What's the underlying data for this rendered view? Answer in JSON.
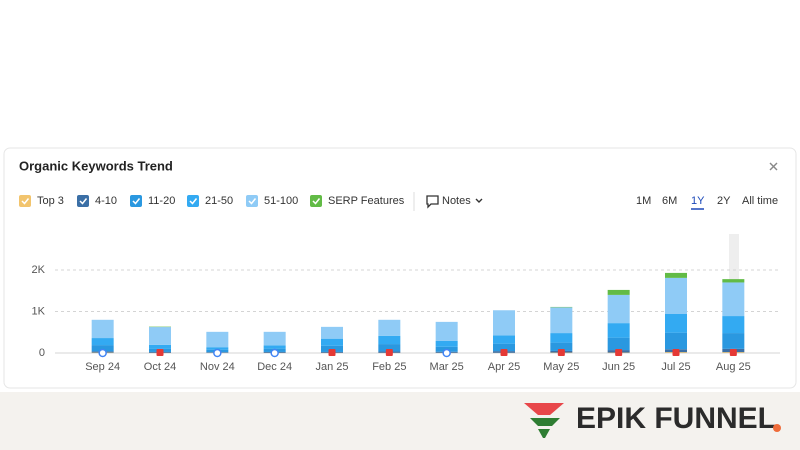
{
  "chart_data": {
    "type": "stacked-bar",
    "title": "Organic Keywords Trend",
    "categories": [
      "Sep 24",
      "Oct 24",
      "Nov 24",
      "Dec 24",
      "Jan 25",
      "Feb 25",
      "Mar 25",
      "Apr 25",
      "May 25",
      "Jun 25",
      "Jul 25",
      "Aug 25"
    ],
    "series": [
      {
        "name": "Top 3",
        "color": "#f2c46d",
        "values": [
          10,
          5,
          5,
          5,
          5,
          5,
          5,
          5,
          10,
          10,
          20,
          20
        ]
      },
      {
        "name": "4-10",
        "color": "#3b6fa6",
        "values": [
          30,
          20,
          15,
          20,
          20,
          30,
          25,
          40,
          40,
          60,
          70,
          80
        ]
      },
      {
        "name": "11-20",
        "color": "#2a98e0",
        "values": [
          150,
          80,
          60,
          80,
          150,
          180,
          120,
          180,
          200,
          300,
          400,
          380
        ]
      },
      {
        "name": "21-50",
        "color": "#33aaf2",
        "values": [
          170,
          90,
          60,
          80,
          170,
          200,
          140,
          200,
          230,
          350,
          450,
          410
        ]
      },
      {
        "name": "51-100",
        "color": "#8fcbf6",
        "values": [
          440,
          430,
          370,
          325,
          285,
          385,
          460,
          605,
          620,
          680,
          870,
          810
        ]
      },
      {
        "name": "SERP Features",
        "color": "#62bb46",
        "values": [
          0,
          10,
          0,
          0,
          0,
          0,
          0,
          0,
          10,
          120,
          120,
          80
        ]
      }
    ],
    "ylim": [
      0,
      2000
    ],
    "yticks": [
      0,
      {
        "value": 1000,
        "label": "1K"
      },
      {
        "value": 2000,
        "label": "2K"
      }
    ],
    "grid": true
  },
  "controls": {
    "notes": "Notes",
    "ranges": [
      "1M",
      "6M",
      "1Y",
      "2Y",
      "All time"
    ],
    "active_range": 2
  },
  "logo": {
    "text": "EPIK FUNNEL"
  }
}
